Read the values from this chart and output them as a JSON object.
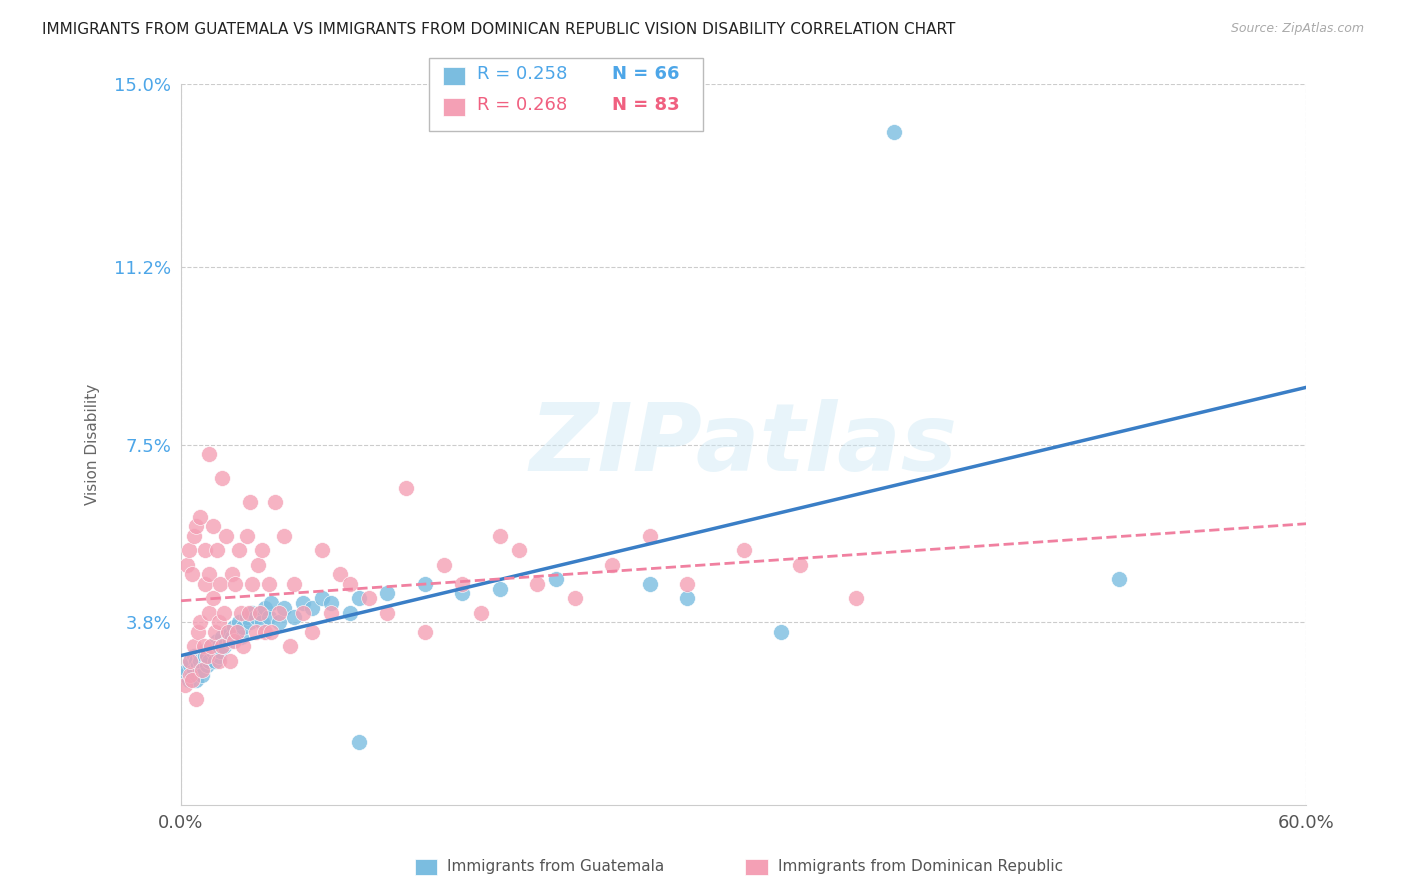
{
  "title": "IMMIGRANTS FROM GUATEMALA VS IMMIGRANTS FROM DOMINICAN REPUBLIC VISION DISABILITY CORRELATION CHART",
  "source": "Source: ZipAtlas.com",
  "ylabel": "Vision Disability",
  "xlim": [
    0.0,
    0.6
  ],
  "ylim": [
    0.0,
    0.15
  ],
  "yticks": [
    0.038,
    0.075,
    0.112,
    0.15
  ],
  "ytick_labels": [
    "3.8%",
    "7.5%",
    "11.2%",
    "15.0%"
  ],
  "xtick_labels": [
    "0.0%",
    "60.0%"
  ],
  "xtick_positions": [
    0.0,
    0.6
  ],
  "legend_r1": "R = 0.258",
  "legend_n1": "N = 66",
  "legend_r2": "R = 0.268",
  "legend_n2": "N = 83",
  "color_blue": "#7bbde0",
  "color_pink": "#f4a0b5",
  "color_blue_text": "#4da6e8",
  "color_pink_text": "#f06080",
  "color_blue_line": "#3a7ec6",
  "color_pink_line": "#f080a0",
  "background_color": "#ffffff",
  "grid_color": "#cccccc",
  "label_blue": "Immigrants from Guatemala",
  "label_pink": "Immigrants from Dominican Republic",
  "scatter_blue_x": [
    0.002,
    0.003,
    0.004,
    0.005,
    0.005,
    0.006,
    0.007,
    0.007,
    0.008,
    0.008,
    0.009,
    0.01,
    0.01,
    0.01,
    0.011,
    0.012,
    0.013,
    0.014,
    0.015,
    0.016,
    0.017,
    0.018,
    0.019,
    0.02,
    0.02,
    0.021,
    0.022,
    0.023,
    0.025,
    0.026,
    0.027,
    0.028,
    0.03,
    0.031,
    0.032,
    0.033,
    0.035,
    0.037,
    0.038,
    0.04,
    0.042,
    0.043,
    0.045,
    0.047,
    0.048,
    0.052,
    0.055,
    0.06,
    0.065,
    0.07,
    0.075,
    0.08,
    0.09,
    0.095,
    0.11,
    0.13,
    0.15,
    0.17,
    0.2,
    0.25,
    0.32,
    0.38,
    0.5,
    0.095,
    0.27
  ],
  "scatter_blue_y": [
    0.027,
    0.028,
    0.026,
    0.029,
    0.03,
    0.027,
    0.028,
    0.031,
    0.026,
    0.03,
    0.029,
    0.028,
    0.031,
    0.03,
    0.027,
    0.032,
    0.031,
    0.029,
    0.03,
    0.033,
    0.032,
    0.03,
    0.034,
    0.031,
    0.033,
    0.032,
    0.035,
    0.033,
    0.036,
    0.034,
    0.035,
    0.037,
    0.036,
    0.038,
    0.035,
    0.037,
    0.039,
    0.038,
    0.04,
    0.039,
    0.04,
    0.038,
    0.041,
    0.039,
    0.042,
    0.038,
    0.041,
    0.039,
    0.042,
    0.041,
    0.043,
    0.042,
    0.04,
    0.043,
    0.044,
    0.046,
    0.044,
    0.045,
    0.047,
    0.046,
    0.036,
    0.14,
    0.047,
    0.013,
    0.043
  ],
  "scatter_pink_x": [
    0.002,
    0.003,
    0.004,
    0.005,
    0.005,
    0.006,
    0.006,
    0.007,
    0.007,
    0.008,
    0.008,
    0.009,
    0.01,
    0.01,
    0.011,
    0.012,
    0.013,
    0.013,
    0.014,
    0.015,
    0.015,
    0.016,
    0.017,
    0.017,
    0.018,
    0.019,
    0.02,
    0.02,
    0.021,
    0.022,
    0.023,
    0.024,
    0.025,
    0.026,
    0.027,
    0.028,
    0.029,
    0.03,
    0.031,
    0.032,
    0.033,
    0.035,
    0.036,
    0.037,
    0.038,
    0.04,
    0.041,
    0.042,
    0.043,
    0.045,
    0.047,
    0.048,
    0.05,
    0.052,
    0.055,
    0.058,
    0.06,
    0.065,
    0.07,
    0.075,
    0.08,
    0.085,
    0.09,
    0.1,
    0.11,
    0.12,
    0.13,
    0.14,
    0.15,
    0.16,
    0.17,
    0.18,
    0.19,
    0.21,
    0.23,
    0.25,
    0.27,
    0.3,
    0.33,
    0.36,
    0.015,
    0.022
  ],
  "scatter_pink_y": [
    0.025,
    0.05,
    0.053,
    0.027,
    0.03,
    0.026,
    0.048,
    0.056,
    0.033,
    0.022,
    0.058,
    0.036,
    0.038,
    0.06,
    0.028,
    0.033,
    0.046,
    0.053,
    0.031,
    0.04,
    0.048,
    0.033,
    0.043,
    0.058,
    0.036,
    0.053,
    0.038,
    0.03,
    0.046,
    0.033,
    0.04,
    0.056,
    0.036,
    0.03,
    0.048,
    0.034,
    0.046,
    0.036,
    0.053,
    0.04,
    0.033,
    0.056,
    0.04,
    0.063,
    0.046,
    0.036,
    0.05,
    0.04,
    0.053,
    0.036,
    0.046,
    0.036,
    0.063,
    0.04,
    0.056,
    0.033,
    0.046,
    0.04,
    0.036,
    0.053,
    0.04,
    0.048,
    0.046,
    0.043,
    0.04,
    0.066,
    0.036,
    0.05,
    0.046,
    0.04,
    0.056,
    0.053,
    0.046,
    0.043,
    0.05,
    0.056,
    0.046,
    0.053,
    0.05,
    0.043,
    0.073,
    0.068
  ]
}
